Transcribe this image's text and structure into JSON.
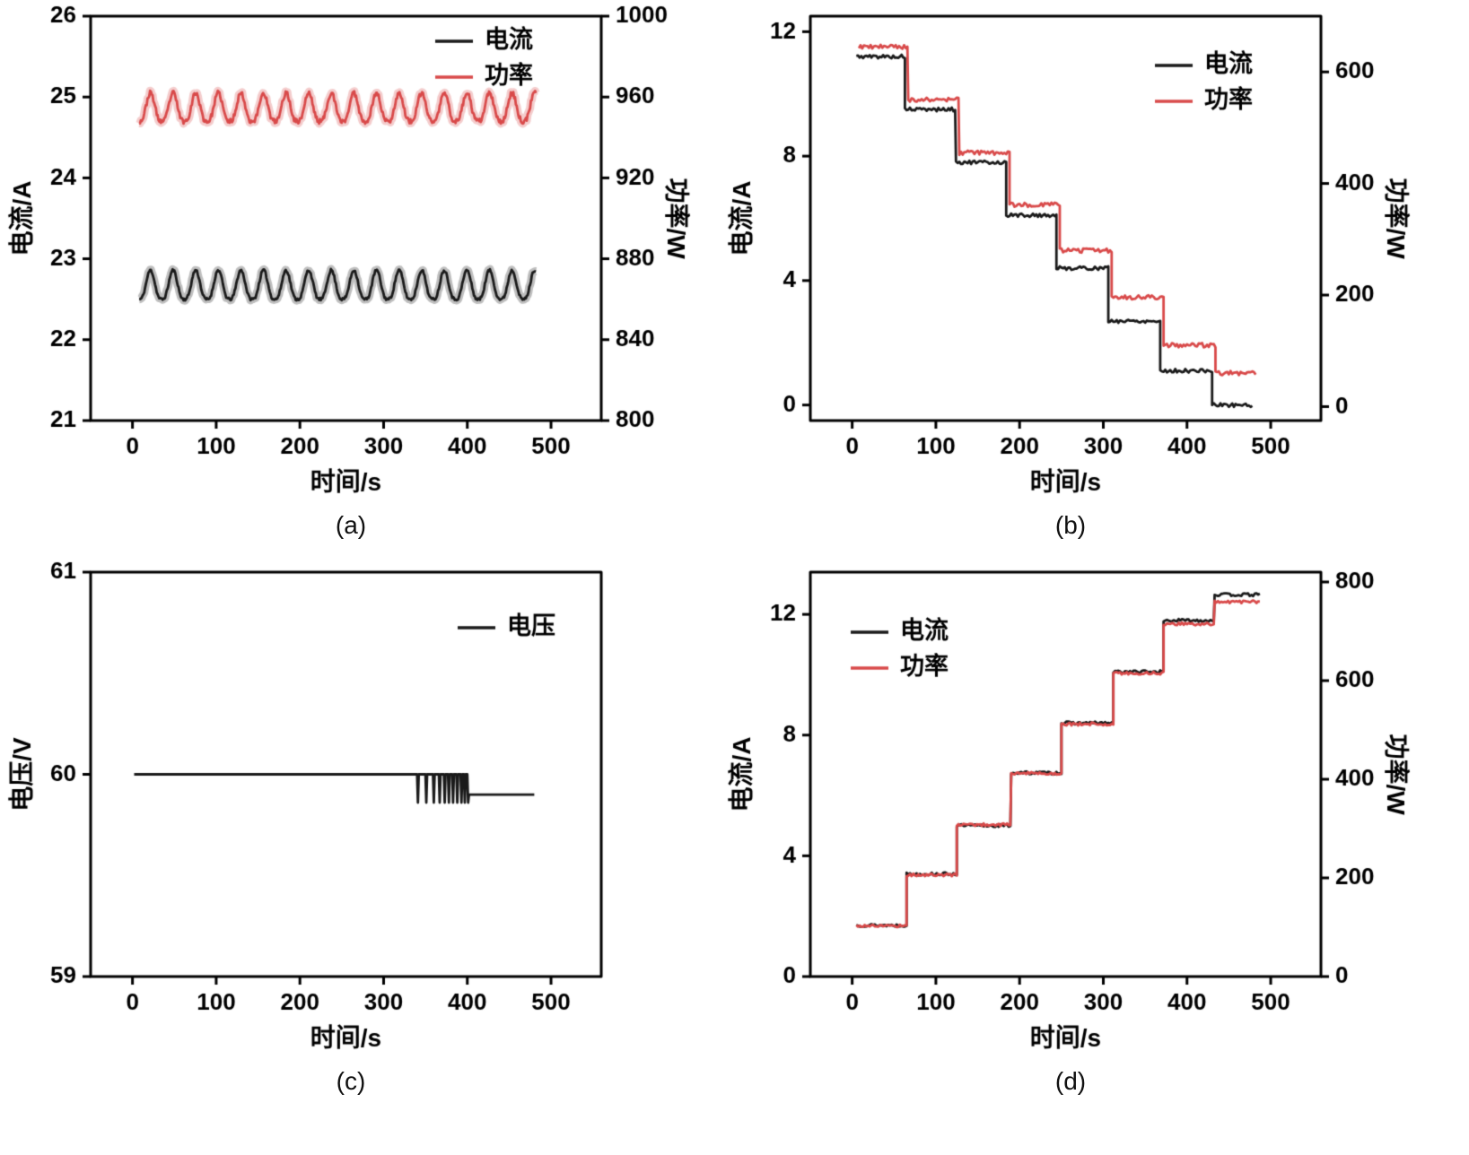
{
  "page": {
    "background": "#ffffff"
  },
  "colors": {
    "current": "#1a1a1a",
    "power": "#d94a4a",
    "voltage": "#1a1a1a",
    "axis": "#000000"
  },
  "captions": {
    "a": "(a)",
    "b": "(b)",
    "c": "(c)",
    "d": "(d)"
  },
  "chart_data": [
    {
      "id": "a",
      "type": "line",
      "xlabel": "时间/s",
      "ylabel_left": "电流/A",
      "ylabel_right": "功率/W",
      "xlim": [
        -50,
        560
      ],
      "xticks": [
        0,
        100,
        200,
        300,
        400,
        500
      ],
      "ylim_left": [
        21,
        26
      ],
      "yticks_left": [
        21,
        22,
        23,
        24,
        25,
        26
      ],
      "ylim_right": [
        800,
        1000
      ],
      "yticks_right": [
        800,
        840,
        880,
        920,
        960,
        1000
      ],
      "legend": {
        "anchor": "top-right",
        "dy": 28,
        "entries": [
          {
            "label": "电流",
            "color": "current"
          },
          {
            "label": "功率",
            "color": "power"
          }
        ]
      },
      "series": [
        {
          "name": "电流",
          "axis": "left",
          "color": "current",
          "halo": true,
          "gen": {
            "kind": "bumps",
            "base": 22.5,
            "amp": 0.36,
            "period": 27,
            "x0": 8,
            "x1": 482,
            "noise": 0.018,
            "seed": 11
          }
        },
        {
          "name": "功率",
          "axis": "right",
          "color": "power",
          "halo": true,
          "gen": {
            "kind": "bumps",
            "base": 948,
            "amp": 14,
            "period": 27,
            "x0": 8,
            "x1": 482,
            "noise": 1.2,
            "seed": 23
          }
        }
      ]
    },
    {
      "id": "b",
      "type": "line",
      "xlabel": "时间/s",
      "ylabel_left": "电流/A",
      "ylabel_right": "功率/W",
      "xlim": [
        -50,
        560
      ],
      "xticks": [
        0,
        100,
        200,
        300,
        400,
        500
      ],
      "ylim_left": [
        -0.5,
        12.5
      ],
      "yticks_left": [
        0,
        4,
        8,
        12
      ],
      "ylim_right": [
        -25,
        700
      ],
      "yticks_right": [
        0,
        200,
        400,
        600
      ],
      "legend": {
        "anchor": "top-right",
        "dy": 55,
        "entries": [
          {
            "label": "电流",
            "color": "current"
          },
          {
            "label": "功率",
            "color": "power"
          }
        ]
      },
      "series": [
        {
          "name": "电流",
          "axis": "left",
          "color": "current",
          "gen": {
            "kind": "steps",
            "edges": [
              5,
              63,
              124,
              184,
              244,
              306,
              368,
              430,
              478
            ],
            "values": [
              11.2,
              9.5,
              7.8,
              6.1,
              4.4,
              2.7,
              1.1,
              0.0
            ],
            "noise": 0.06,
            "seed": 5
          }
        },
        {
          "name": "功率",
          "axis": "right",
          "color": "power",
          "gen": {
            "kind": "steps",
            "edges": [
              8,
              67,
              128,
              188,
              248,
              310,
              372,
              434,
              483
            ],
            "values": [
              645,
              550,
              455,
              362,
              280,
              196,
              110,
              60
            ],
            "noise": 4,
            "seed": 9
          }
        }
      ]
    },
    {
      "id": "c",
      "type": "line",
      "xlabel": "时间/s",
      "ylabel_left": "电压/V",
      "xlim": [
        -50,
        560
      ],
      "xticks": [
        0,
        100,
        200,
        300,
        400,
        500
      ],
      "ylim_left": [
        59,
        61
      ],
      "yticks_left": [
        59,
        60,
        61
      ],
      "legend": {
        "anchor": "top-right",
        "dx": 25,
        "dy": 62,
        "entries": [
          {
            "label": "电压",
            "color": "voltage"
          }
        ]
      },
      "series": [
        {
          "name": "电压",
          "axis": "left",
          "color": "voltage",
          "gen": {
            "kind": "polyline",
            "points": [
              [
                2,
                60
              ],
              [
                340,
                60
              ],
              [
                341,
                59.86
              ],
              [
                342,
                60
              ],
              [
                350,
                60
              ],
              [
                351,
                59.86
              ],
              [
                352,
                60
              ],
              [
                359,
                60
              ],
              [
                360,
                59.86
              ],
              [
                361,
                60
              ],
              [
                366,
                60
              ],
              [
                367,
                59.86
              ],
              [
                368,
                60
              ],
              [
                372,
                60
              ],
              [
                373,
                59.86
              ],
              [
                374,
                60
              ],
              [
                377,
                60
              ],
              [
                378,
                59.86
              ],
              [
                379,
                60
              ],
              [
                382,
                60
              ],
              [
                383,
                59.86
              ],
              [
                384,
                60
              ],
              [
                387,
                60
              ],
              [
                388,
                59.86
              ],
              [
                389,
                60
              ],
              [
                392,
                60
              ],
              [
                393,
                59.86
              ],
              [
                394,
                60
              ],
              [
                396,
                60
              ],
              [
                397,
                59.86
              ],
              [
                398,
                60
              ],
              [
                400,
                60
              ],
              [
                401,
                59.86
              ],
              [
                402,
                59.9
              ],
              [
                480,
                59.9
              ]
            ]
          }
        }
      ]
    },
    {
      "id": "d",
      "type": "line",
      "xlabel": "时间/s",
      "ylabel_left": "电流/A",
      "ylabel_right": "功率/W",
      "xlim": [
        -50,
        560
      ],
      "xticks": [
        0,
        100,
        200,
        300,
        400,
        500
      ],
      "ylim_left": [
        0,
        13.4
      ],
      "yticks_left": [
        0,
        4,
        8,
        12
      ],
      "ylim_right": [
        0,
        820
      ],
      "yticks_right": [
        0,
        200,
        400,
        600,
        800
      ],
      "legend": {
        "anchor": "top-left",
        "dy": 67,
        "entries": [
          {
            "label": "电流",
            "color": "current"
          },
          {
            "label": "功率",
            "color": "power"
          }
        ]
      },
      "series": [
        {
          "name": "电流",
          "axis": "left",
          "color": "current",
          "gen": {
            "kind": "steps",
            "edges": [
              5,
              65,
              125,
              190,
              250,
              312,
              372,
              433,
              488
            ],
            "values": [
              1.7,
              3.4,
              5.0,
              6.75,
              8.4,
              10.1,
              11.8,
              12.65
            ],
            "noise": 0.05,
            "seed": 13
          }
        },
        {
          "name": "功率",
          "axis": "right",
          "color": "power",
          "gen": {
            "kind": "steps",
            "edges": [
              5,
              65,
              125,
              190,
              250,
              312,
              372,
              433,
              488
            ],
            "values": [
              103,
              206,
              308,
              412,
              512,
              615,
              715,
              760
            ],
            "noise": 3,
            "seed": 17
          }
        }
      ]
    }
  ]
}
